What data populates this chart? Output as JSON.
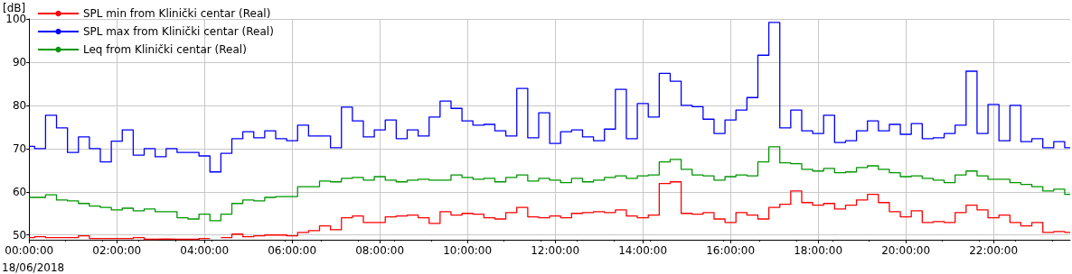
{
  "chart_data": {
    "type": "step",
    "ylabel": "[dB]",
    "annotations": [
      "18/06/2018"
    ],
    "x": [
      0,
      0.125,
      0.375,
      0.625,
      0.875,
      1.125,
      1.375,
      1.625,
      1.875,
      2.125,
      2.375,
      2.625,
      2.875,
      3.125,
      3.375,
      3.625,
      3.875,
      4.125,
      4.375,
      4.625,
      4.875,
      5.125,
      5.375,
      5.625,
      5.875,
      6.125,
      6.375,
      6.625,
      6.875,
      7.125,
      7.375,
      7.625,
      7.875,
      8.125,
      8.375,
      8.625,
      8.875,
      9.125,
      9.375,
      9.625,
      9.875,
      10.125,
      10.375,
      10.625,
      10.875,
      11.125,
      11.375,
      11.625,
      11.875,
      12.125,
      12.375,
      12.625,
      12.875,
      13.125,
      13.375,
      13.625,
      13.875,
      14.125,
      14.375,
      14.625,
      14.875,
      15.125,
      15.375,
      15.625,
      15.875,
      16.125,
      16.375,
      16.625,
      16.875,
      17.125,
      17.375,
      17.625,
      17.875,
      18.125,
      18.375,
      18.625,
      18.875,
      19.125,
      19.375,
      19.625,
      19.875,
      20.125,
      20.375,
      20.625,
      20.875,
      21.125,
      21.375,
      21.625,
      21.875,
      22.125,
      22.375,
      22.625,
      22.875,
      23.125,
      23.375,
      23.625,
      23.75
    ],
    "series": [
      {
        "name": "SPL min from Klinički centar (Real)",
        "color": "#ff0000",
        "values": [
          49.4,
          49.6,
          49.4,
          49.4,
          49.4,
          49.8,
          49.2,
          49.2,
          49.2,
          49.2,
          49.4,
          49.0,
          49.1,
          49.0,
          49.0,
          49.0,
          49.2,
          null,
          49.4,
          50.2,
          49.6,
          49.8,
          50.0,
          50.0,
          49.8,
          50.6,
          51.0,
          52.1,
          51.2,
          54.0,
          54.4,
          52.9,
          52.9,
          54.2,
          54.4,
          54.6,
          54.0,
          52.7,
          55.4,
          54.6,
          55.0,
          54.8,
          54.0,
          53.7,
          55.2,
          56.4,
          54.2,
          54.0,
          54.4,
          54.0,
          55.0,
          55.2,
          55.4,
          55.2,
          55.8,
          54.4,
          54.0,
          54.6,
          61.9,
          62.3,
          55.0,
          54.8,
          55.2,
          53.7,
          52.9,
          55.2,
          54.6,
          53.7,
          56.4,
          57.1,
          60.2,
          57.5,
          56.9,
          57.3,
          56.0,
          56.9,
          58.1,
          59.4,
          57.5,
          55.4,
          54.2,
          55.6,
          52.9,
          53.1,
          52.9,
          55.2,
          56.9,
          55.8,
          54.0,
          54.6,
          52.9,
          52.1,
          52.9,
          50.6,
          50.8,
          50.6,
          50.6
        ]
      },
      {
        "name": "SPL max from Klinički centar (Real)",
        "color": "#0000ff",
        "values": [
          70.5,
          70.0,
          77.7,
          74.8,
          69.1,
          72.7,
          70.0,
          66.9,
          71.7,
          74.3,
          68.5,
          70.0,
          68.1,
          70.0,
          69.1,
          69.1,
          68.3,
          64.6,
          68.9,
          72.3,
          73.9,
          72.5,
          74.1,
          72.3,
          71.8,
          75.4,
          72.9,
          72.9,
          70.2,
          79.6,
          76.4,
          72.7,
          74.3,
          76.6,
          72.3,
          74.3,
          72.9,
          77.3,
          81.0,
          79.3,
          76.4,
          75.4,
          75.6,
          74.1,
          72.9,
          83.9,
          72.5,
          78.3,
          71.2,
          73.9,
          74.3,
          72.7,
          71.8,
          74.5,
          83.7,
          72.3,
          80.4,
          77.3,
          87.4,
          85.6,
          80.0,
          79.7,
          76.8,
          73.5,
          76.6,
          78.9,
          81.8,
          91.6,
          99.2,
          74.8,
          78.9,
          74.1,
          73.5,
          77.7,
          71.4,
          71.8,
          74.1,
          76.4,
          74.1,
          75.6,
          73.3,
          75.8,
          72.3,
          72.5,
          73.5,
          75.4,
          87.9,
          73.5,
          80.2,
          71.8,
          80.0,
          71.6,
          72.3,
          70.2,
          71.6,
          70.2,
          70.2
        ]
      },
      {
        "name": "Leq from Klinički centar (Real)",
        "color": "#009600",
        "values": [
          58.7,
          58.7,
          59.3,
          58.1,
          57.9,
          57.3,
          56.7,
          56.4,
          55.8,
          56.2,
          55.6,
          56.0,
          55.4,
          55.4,
          54.0,
          53.7,
          54.8,
          53.3,
          54.8,
          57.3,
          58.1,
          57.9,
          58.7,
          58.9,
          58.9,
          61.2,
          61.2,
          62.5,
          62.3,
          63.1,
          63.3,
          62.7,
          63.5,
          62.7,
          62.3,
          62.7,
          62.9,
          62.7,
          62.7,
          63.9,
          63.3,
          62.9,
          63.1,
          62.3,
          63.3,
          63.9,
          62.5,
          63.1,
          62.7,
          62.1,
          63.1,
          62.3,
          62.7,
          63.3,
          63.7,
          63.1,
          63.7,
          63.9,
          66.9,
          67.5,
          65.2,
          63.9,
          63.7,
          62.7,
          63.5,
          63.9,
          63.7,
          66.9,
          70.4,
          66.7,
          66.5,
          65.2,
          64.8,
          65.4,
          64.4,
          64.6,
          65.6,
          66.0,
          65.2,
          64.4,
          63.5,
          63.7,
          63.1,
          62.7,
          62.1,
          63.9,
          64.8,
          63.7,
          62.9,
          62.9,
          62.1,
          61.7,
          61.2,
          60.2,
          60.6,
          59.4,
          59.4
        ]
      }
    ],
    "xlim": [
      0,
      23.75
    ],
    "xticks": [
      {
        "value": 0,
        "label": "00:00:00"
      },
      {
        "value": 2,
        "label": "02:00:00"
      },
      {
        "value": 4,
        "label": "04:00:00"
      },
      {
        "value": 6,
        "label": "06:00:00"
      },
      {
        "value": 8,
        "label": "08:00:00"
      },
      {
        "value": 10,
        "label": "10:00:00"
      },
      {
        "value": 12,
        "label": "12:00:00"
      },
      {
        "value": 14,
        "label": "14:00:00"
      },
      {
        "value": 16,
        "label": "16:00:00"
      },
      {
        "value": 18,
        "label": "18:00:00"
      },
      {
        "value": 20,
        "label": "20:00:00"
      },
      {
        "value": 22,
        "label": "22:00:00"
      }
    ],
    "ylim": [
      48.9,
      100
    ],
    "yticks": [
      50,
      60,
      70,
      80,
      90,
      100
    ],
    "grid": true,
    "legend": "top left"
  }
}
